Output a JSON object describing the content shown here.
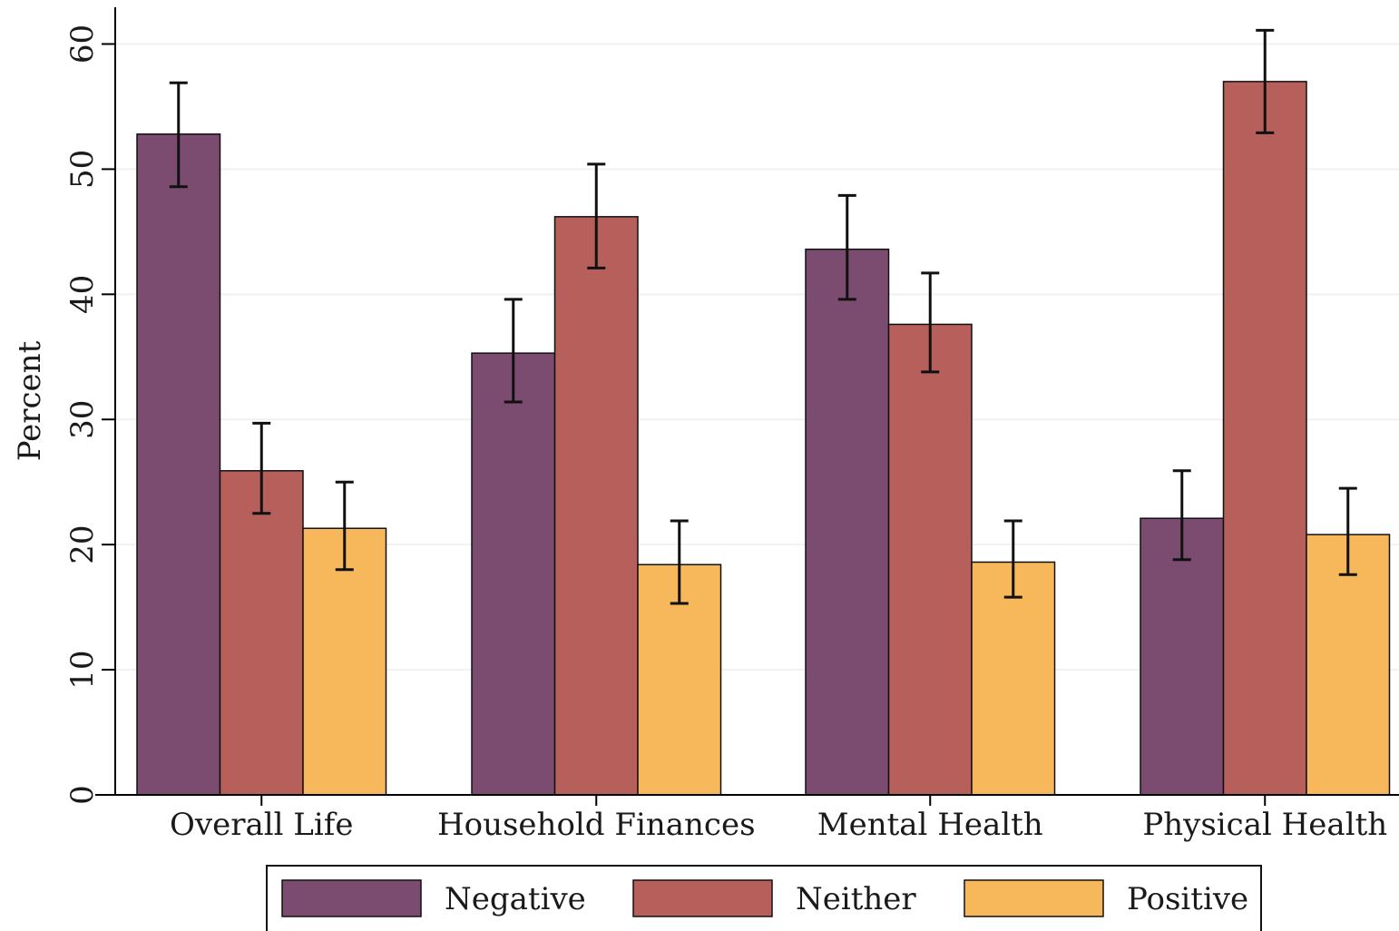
{
  "chart_data": {
    "type": "bar",
    "title": "",
    "xlabel": "",
    "ylabel": "Percent",
    "ylim": [
      0,
      60
    ],
    "yticks": [
      0,
      10,
      20,
      30,
      40,
      50,
      60
    ],
    "grid": true,
    "legend_position": "bottom",
    "categories": [
      "Overall Life",
      "Household Finances",
      "Mental Health",
      "Physical Health"
    ],
    "series": [
      {
        "name": "Negative",
        "color": "#7b4c6f",
        "values": [
          52.8,
          35.3,
          43.6,
          22.1
        ],
        "ci_low": [
          48.6,
          31.4,
          39.6,
          18.8
        ],
        "ci_high": [
          56.9,
          39.6,
          47.9,
          25.9
        ]
      },
      {
        "name": "Neither",
        "color": "#b75f5a",
        "values": [
          25.9,
          46.2,
          37.6,
          57.0
        ],
        "ci_low": [
          22.5,
          42.1,
          33.8,
          52.9
        ],
        "ci_high": [
          29.7,
          50.4,
          41.7,
          61.1
        ]
      },
      {
        "name": "Positive",
        "color": "#f6b85a",
        "values": [
          21.3,
          18.4,
          18.6,
          20.8
        ],
        "ci_low": [
          18.0,
          15.3,
          15.8,
          17.6
        ],
        "ci_high": [
          25.0,
          21.9,
          21.9,
          24.5
        ]
      }
    ]
  }
}
